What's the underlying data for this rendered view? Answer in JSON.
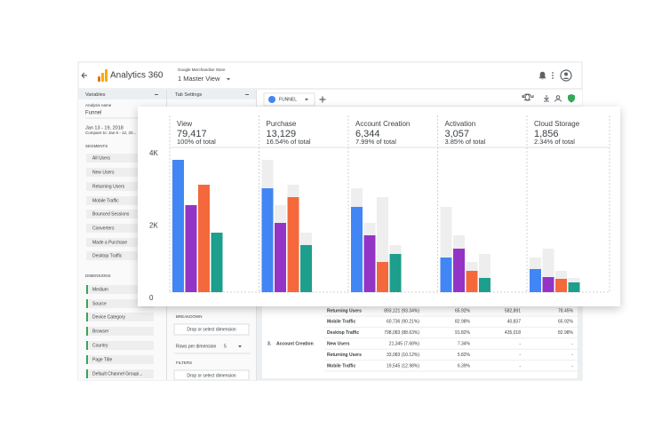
{
  "app": {
    "product": "Analytics 360",
    "account": "Google Merchandise Store",
    "view": "1 Master View",
    "variables_title": "Variables",
    "tab_settings_title": "Tab Settings",
    "analysis_name_label": "Analysis name",
    "analysis_name": "Funnel",
    "date_range": "Jan 13 - 19, 2018",
    "compare": "Compare to: Jan 6 - 12, 20...",
    "segments_title": "SEGMENTS",
    "segments": [
      "All Users",
      "New Users",
      "Returning Users",
      "Mobile Traffic",
      "Bounced Sessions",
      "Converters",
      "Made a Purchase",
      "Desktop Traffic"
    ],
    "dimensions_title": "DIMENSIONS",
    "dimensions": [
      "Medium",
      "Source",
      "Device Category",
      "Browser",
      "Country",
      "Page Title",
      "Default Channel Groupi..."
    ],
    "breakdown_title": "BREAKDOWN",
    "drop_placeholder": "Drop or select dimension",
    "rows_label": "Rows per dimension",
    "rows_value": "5",
    "filters_title": "FILTERS",
    "tab_label": "FUNNEL"
  },
  "table": {
    "rows": [
      {
        "segment": "Returning Users",
        "cells": [
          "893,121 (93.34%)",
          "65.92%",
          "582,891",
          "78.45%"
        ]
      },
      {
        "segment": "Mobile Traffic",
        "cells": [
          "60,736 (90.21%)",
          "82.98%",
          "40,837",
          "65.92%"
        ]
      },
      {
        "segment": "Desktop Traffic",
        "cells": [
          "798,083 (88.63%)",
          "91.82%",
          "435,018",
          "82.98%"
        ]
      },
      {
        "step": "3.",
        "step_name": "Account Creation",
        "segment": "New Users",
        "cells": [
          "21,345 (7.68%)",
          "7.34%",
          "-",
          "-"
        ]
      },
      {
        "segment": "Returning Users",
        "cells": [
          "33,083 (10.12%)",
          "5.82%",
          "-",
          "-"
        ]
      },
      {
        "segment": "Mobile Traffic",
        "cells": [
          "19,545 (12.98%)",
          "6.39%",
          "-",
          "-"
        ]
      }
    ]
  },
  "chart_data": {
    "type": "bar",
    "categories": [
      "View",
      "Purchase",
      "Account Creation",
      "Activation",
      "Cloud Storage"
    ],
    "step_totals": [
      "79,417",
      "13,129",
      "6,344",
      "3,057",
      "1,856"
    ],
    "step_shares": [
      "100% of total",
      "16.54% of total",
      "7.99% of total",
      "3.85% of total",
      "2.34% of total"
    ],
    "series": [
      {
        "color": "#4285f4",
        "values": [
          3656,
          2871,
          2356,
          957,
          638
        ]
      },
      {
        "color": "#9334c6",
        "values": [
          2405,
          1914,
          1571,
          1202,
          417
        ]
      },
      {
        "color": "#f4683c",
        "values": [
          2969,
          2626,
          834,
          589,
          368
        ]
      },
      {
        "color": "#1e9e8c",
        "values": [
          1644,
          1301,
          1055,
          393,
          270
        ]
      }
    ],
    "dropoff_color": "#eeeeee",
    "ylim": [
      0,
      4000
    ],
    "yticks": [
      0,
      {
        "value": 2000,
        "label": "2K"
      },
      {
        "value": 4000,
        "label": "4K"
      }
    ]
  }
}
